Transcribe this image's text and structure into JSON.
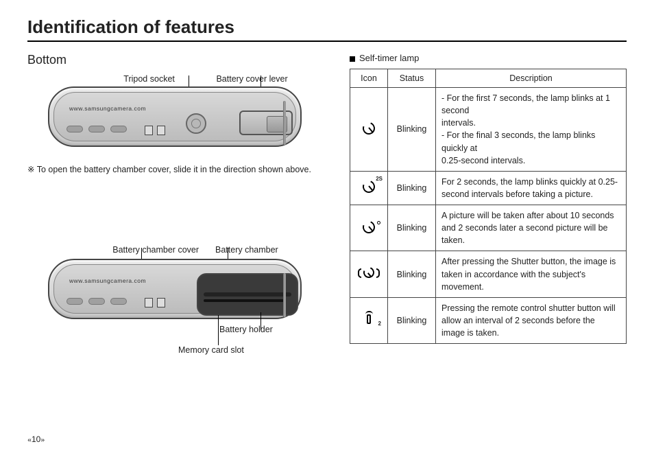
{
  "title": "Identification of features",
  "left": {
    "subhead": "Bottom",
    "label_tripod": "Tripod socket",
    "label_lever": "Battery cover lever",
    "url_text": "www.samsungcamera.com",
    "note_symbol": "※",
    "note_text": "To open the battery chamber cover, slide it in the direction shown above.",
    "label_cover": "Battery chamber cover",
    "label_chamber": "Battery chamber",
    "label_holder": "Battery holder",
    "label_slot": "Memory card slot"
  },
  "right": {
    "section_title": "Self-timer lamp",
    "headers": {
      "icon": "Icon",
      "status": "Status",
      "description": "Description"
    },
    "rows": [
      {
        "icon_type": "timer",
        "icon_sup": "",
        "status": "Blinking",
        "desc": "- For the first 7 seconds, the lamp blinks at 1 second\n   intervals.\n- For the final 3 seconds, the lamp blinks quickly at\n   0.25-second intervals."
      },
      {
        "icon_type": "timer",
        "icon_sup": "2S",
        "status": "Blinking",
        "desc": "For 2 seconds, the lamp blinks quickly at 0.25-second intervals before taking a picture."
      },
      {
        "icon_type": "timer_side",
        "icon_sup": "",
        "status": "Blinking",
        "desc": "A picture will be taken after about 10 seconds and 2 seconds later a second picture will be taken."
      },
      {
        "icon_type": "motion",
        "icon_sup": "",
        "status": "Blinking",
        "desc": "After pressing the Shutter button, the image is taken in accordance with the subject's movement."
      },
      {
        "icon_type": "remote",
        "icon_sup": "2",
        "status": "Blinking",
        "desc": "Pressing the remote control shutter button will allow an interval of 2 seconds before the image is taken."
      }
    ]
  },
  "page_number": "10"
}
